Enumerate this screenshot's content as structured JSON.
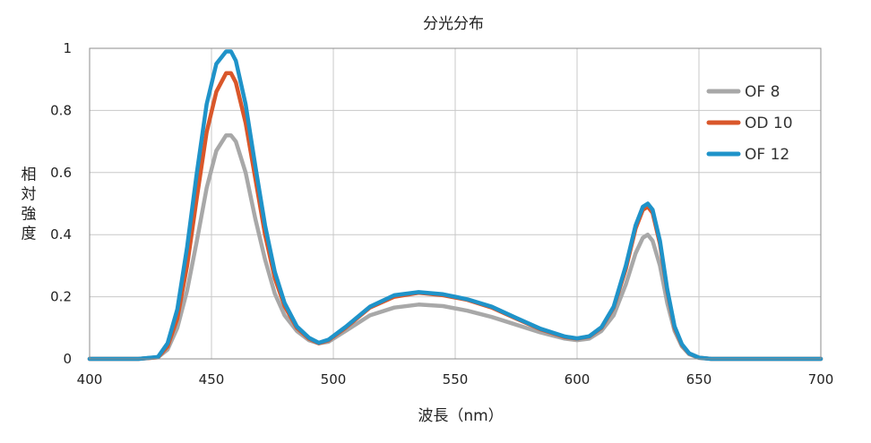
{
  "chart_data": {
    "type": "line",
    "title": "分光分布",
    "xlabel": "波長（nm）",
    "ylabel": "相対強度",
    "xlim": [
      400,
      700
    ],
    "ylim": [
      0,
      1
    ],
    "xticks": [
      400,
      450,
      500,
      550,
      600,
      650,
      700
    ],
    "yticks": [
      0,
      0.2,
      0.4,
      0.6,
      0.8,
      1
    ],
    "ytick_labels": [
      "0",
      "0.2",
      "0.4",
      "0.6",
      "0.8",
      "1"
    ],
    "grid": true,
    "legend_position": "top-right",
    "series": [
      {
        "name": "OF 8",
        "color": "#a8a8a8",
        "x": [
          400,
          420,
          428,
          432,
          436,
          440,
          444,
          448,
          452,
          456,
          458,
          460,
          464,
          468,
          472,
          476,
          480,
          485,
          490,
          494,
          498,
          505,
          515,
          525,
          535,
          545,
          555,
          565,
          575,
          585,
          595,
          600,
          605,
          610,
          615,
          620,
          624,
          627,
          629,
          631,
          634,
          637,
          640,
          643,
          646,
          650,
          655,
          660,
          700
        ],
        "values": [
          0,
          0,
          0.005,
          0.03,
          0.1,
          0.22,
          0.38,
          0.55,
          0.67,
          0.72,
          0.72,
          0.7,
          0.6,
          0.45,
          0.32,
          0.21,
          0.14,
          0.09,
          0.06,
          0.05,
          0.055,
          0.09,
          0.14,
          0.165,
          0.175,
          0.17,
          0.155,
          0.135,
          0.11,
          0.085,
          0.065,
          0.06,
          0.065,
          0.09,
          0.14,
          0.24,
          0.34,
          0.39,
          0.4,
          0.38,
          0.3,
          0.18,
          0.09,
          0.04,
          0.015,
          0.003,
          0,
          0,
          0
        ]
      },
      {
        "name": "OD 10",
        "color": "#d9572a",
        "x": [
          400,
          420,
          428,
          432,
          436,
          440,
          444,
          448,
          452,
          456,
          458,
          460,
          464,
          468,
          472,
          476,
          480,
          485,
          490,
          494,
          498,
          505,
          515,
          525,
          535,
          545,
          555,
          565,
          575,
          585,
          595,
          600,
          605,
          610,
          615,
          620,
          624,
          627,
          629,
          631,
          634,
          637,
          640,
          643,
          646,
          650,
          655,
          660,
          700
        ],
        "values": [
          0,
          0,
          0.005,
          0.04,
          0.13,
          0.3,
          0.52,
          0.73,
          0.86,
          0.92,
          0.92,
          0.89,
          0.76,
          0.58,
          0.4,
          0.26,
          0.17,
          0.1,
          0.065,
          0.05,
          0.06,
          0.1,
          0.165,
          0.2,
          0.213,
          0.205,
          0.19,
          0.165,
          0.13,
          0.095,
          0.07,
          0.065,
          0.072,
          0.1,
          0.165,
          0.29,
          0.42,
          0.48,
          0.49,
          0.47,
          0.37,
          0.22,
          0.1,
          0.045,
          0.017,
          0.004,
          0,
          0,
          0
        ]
      },
      {
        "name": "OF 12",
        "color": "#1f93c9",
        "x": [
          400,
          420,
          428,
          432,
          436,
          440,
          444,
          448,
          452,
          456,
          458,
          460,
          464,
          468,
          472,
          476,
          480,
          485,
          490,
          494,
          498,
          505,
          515,
          525,
          535,
          545,
          555,
          565,
          575,
          585,
          595,
          600,
          605,
          610,
          615,
          620,
          624,
          627,
          629,
          631,
          634,
          637,
          640,
          643,
          646,
          650,
          655,
          660,
          700
        ],
        "values": [
          0,
          0,
          0.006,
          0.05,
          0.16,
          0.36,
          0.6,
          0.82,
          0.95,
          0.99,
          0.99,
          0.96,
          0.82,
          0.62,
          0.43,
          0.28,
          0.18,
          0.105,
          0.068,
          0.052,
          0.062,
          0.103,
          0.168,
          0.205,
          0.215,
          0.208,
          0.192,
          0.168,
          0.132,
          0.097,
          0.072,
          0.066,
          0.073,
          0.102,
          0.168,
          0.3,
          0.43,
          0.49,
          0.5,
          0.48,
          0.38,
          0.225,
          0.105,
          0.047,
          0.018,
          0.004,
          0,
          0,
          0
        ]
      }
    ]
  }
}
